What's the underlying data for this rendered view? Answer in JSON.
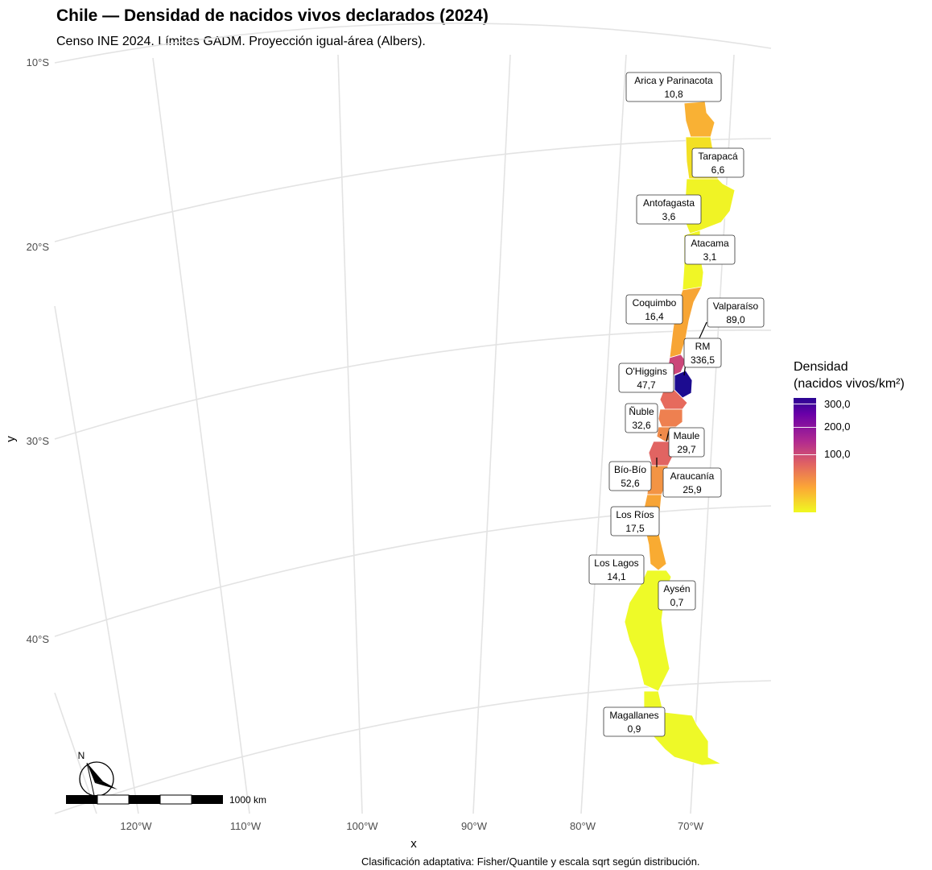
{
  "title": "Chile — Densidad de nacidos vivos declarados (2024)",
  "subtitle": "Censo INE 2024. Límites GADM. Proyección igual-área (Albers).",
  "caption": "Clasificación adaptativa: Fisher/Quantile y escala sqrt según distribución.",
  "axes": {
    "xlabel": "x",
    "ylabel": "y",
    "lat_ticks": [
      "10°S",
      "20°S",
      "30°S",
      "40°S"
    ],
    "lon_ticks": [
      "120°W",
      "110°W",
      "100°W",
      "90°W",
      "80°W",
      "70°W"
    ]
  },
  "legend": {
    "title_line1": "Densidad",
    "title_line2": "(nacidos vivos/km²)",
    "ticks": [
      "300,0",
      "200,0",
      "100,0"
    ],
    "colors": [
      "#2a0593",
      "#6a00a8",
      "#b12a90",
      "#e16462",
      "#fca636",
      "#f0f921"
    ]
  },
  "scale_bar": {
    "label": "1000 km"
  },
  "north_arrow": {
    "label": "N"
  },
  "regions": [
    {
      "name": "Arica y Parinacota",
      "value": "10,8",
      "color": "#f9b134"
    },
    {
      "name": "Tarapacá",
      "value": "6,6",
      "color": "#f3e024"
    },
    {
      "name": "Antofagasta",
      "value": "3,6",
      "color": "#f0f325"
    },
    {
      "name": "Atacama",
      "value": "3,1",
      "color": "#f0f626"
    },
    {
      "name": "Coquimbo",
      "value": "16,4",
      "color": "#f7a535"
    },
    {
      "name": "Valparaíso",
      "value": "89,0",
      "color": "#cb4679"
    },
    {
      "name": "RM",
      "value": "336,5",
      "color": "#1c0b90"
    },
    {
      "name": "O'Higgins",
      "value": "47,7",
      "color": "#e66a5d"
    },
    {
      "name": "Ñuble",
      "value": "32,6",
      "color": "#ee8050"
    },
    {
      "name": "Maule",
      "value": "29,7",
      "color": "#ef8a4a"
    },
    {
      "name": "Bío-Bío",
      "value": "52,6",
      "color": "#e16462"
    },
    {
      "name": "Araucanía",
      "value": "25,9",
      "color": "#f39444"
    },
    {
      "name": "Los Ríos",
      "value": "17,5",
      "color": "#f7a436"
    },
    {
      "name": "Los Lagos",
      "value": "14,1",
      "color": "#f9ab32"
    },
    {
      "name": "Aysén",
      "value": "0,7",
      "color": "#eefa28"
    },
    {
      "name": "Magallanes",
      "value": "0,9",
      "color": "#eef928"
    }
  ]
}
